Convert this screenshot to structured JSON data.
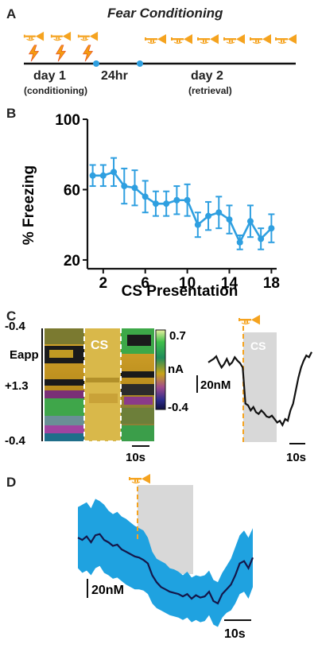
{
  "panel_a": {
    "letter": "A",
    "title": "Fear Conditioning",
    "day1_label": "day 1",
    "day1_sub": "(conditioning)",
    "gap_label": "24hr",
    "day2_label": "day 2",
    "day2_sub": "(retrieval)",
    "day1_icons": [
      "trumpet-icon",
      "lightning-shock-icon"
    ],
    "day2_icons": [
      "trumpet-icon"
    ],
    "colors": {
      "trumpet": "#f5a31f",
      "shock": "#f39c12",
      "timeline_dot": "#2e9fe0"
    }
  },
  "panel_b": {
    "letter": "B"
  },
  "chart_data": [
    {
      "type": "line",
      "xlabel": "CS Presentation",
      "ylabel": "% Freezing",
      "xticks": [
        "2",
        "6",
        "10",
        "14",
        "18"
      ],
      "yticks": [
        "20",
        "60",
        "100"
      ],
      "ylim": [
        15,
        100
      ],
      "xlim": [
        0.5,
        18.5
      ],
      "color": "#2e9fe0",
      "x": [
        1,
        2,
        3,
        4,
        5,
        6,
        7,
        8,
        9,
        10,
        11,
        12,
        13,
        14,
        15,
        16,
        17,
        18
      ],
      "y": [
        68,
        68,
        70,
        62,
        61,
        56,
        52,
        52,
        54,
        54,
        40,
        45,
        47,
        43,
        30,
        42,
        32,
        38
      ],
      "err": [
        6,
        6,
        8,
        10,
        10,
        9,
        7,
        7,
        8,
        9,
        7,
        8,
        9,
        8,
        4,
        9,
        6,
        8
      ]
    },
    {
      "type": "heatmap",
      "ylabel": "Eapp",
      "yticks": [
        "-0.4",
        "+1.3",
        "-0.4"
      ],
      "colorbar_label": "nA",
      "colorbar_range": [
        "0.7",
        "-0.4"
      ],
      "cs_label": "CS",
      "scalebar": "10s"
    },
    {
      "type": "line",
      "cs_label": "CS",
      "scalebar_y": "20nM",
      "scalebar_x": "10s",
      "trace": [
        0.78,
        0.8,
        0.82,
        0.85,
        0.78,
        0.72,
        0.76,
        0.82,
        0.75,
        0.78,
        0.84,
        0.8,
        0.77,
        0.72,
        0.3,
        0.28,
        0.22,
        0.26,
        0.2,
        0.18,
        0.22,
        0.19,
        0.15,
        0.14,
        0.16,
        0.12,
        0.08,
        0.1,
        0.05,
        0.12,
        0.1,
        0.22,
        0.3,
        0.45,
        0.6,
        0.72,
        0.8,
        0.86,
        0.84,
        0.9
      ]
    },
    {
      "type": "area",
      "scalebar_y": "20nM",
      "scalebar_x": "10s",
      "mean_color": "#14174a",
      "band_color": "#1fa2e0",
      "mean": [
        0.62,
        0.6,
        0.63,
        0.58,
        0.64,
        0.65,
        0.6,
        0.58,
        0.55,
        0.56,
        0.52,
        0.5,
        0.48,
        0.46,
        0.45,
        0.43,
        0.4,
        0.3,
        0.24,
        0.2,
        0.18,
        0.16,
        0.15,
        0.14,
        0.12,
        0.14,
        0.1,
        0.13,
        0.11,
        0.12,
        0.16,
        0.08,
        0.06,
        0.14,
        0.18,
        0.22,
        0.3,
        0.4,
        0.42,
        0.36,
        0.45
      ],
      "upper": [
        0.88,
        0.9,
        0.92,
        0.87,
        0.95,
        0.93,
        0.9,
        0.85,
        0.82,
        0.84,
        0.8,
        0.78,
        0.75,
        0.72,
        0.7,
        0.68,
        0.62,
        0.5,
        0.44,
        0.42,
        0.4,
        0.36,
        0.35,
        0.33,
        0.3,
        0.33,
        0.28,
        0.3,
        0.29,
        0.3,
        0.34,
        0.26,
        0.24,
        0.32,
        0.38,
        0.44,
        0.54,
        0.64,
        0.68,
        0.62,
        0.7
      ],
      "lower": [
        0.36,
        0.32,
        0.34,
        0.3,
        0.36,
        0.38,
        0.32,
        0.3,
        0.27,
        0.28,
        0.25,
        0.22,
        0.2,
        0.18,
        0.18,
        0.17,
        0.14,
        0.06,
        0.02,
        0.0,
        -0.02,
        -0.04,
        -0.05,
        -0.06,
        -0.08,
        -0.06,
        -0.1,
        -0.08,
        -0.1,
        -0.09,
        -0.04,
        -0.12,
        -0.14,
        -0.06,
        -0.02,
        0.0,
        0.06,
        0.14,
        0.16,
        0.1,
        0.2
      ]
    }
  ],
  "panel_c": {
    "letter": "C"
  },
  "panel_d": {
    "letter": "D"
  }
}
